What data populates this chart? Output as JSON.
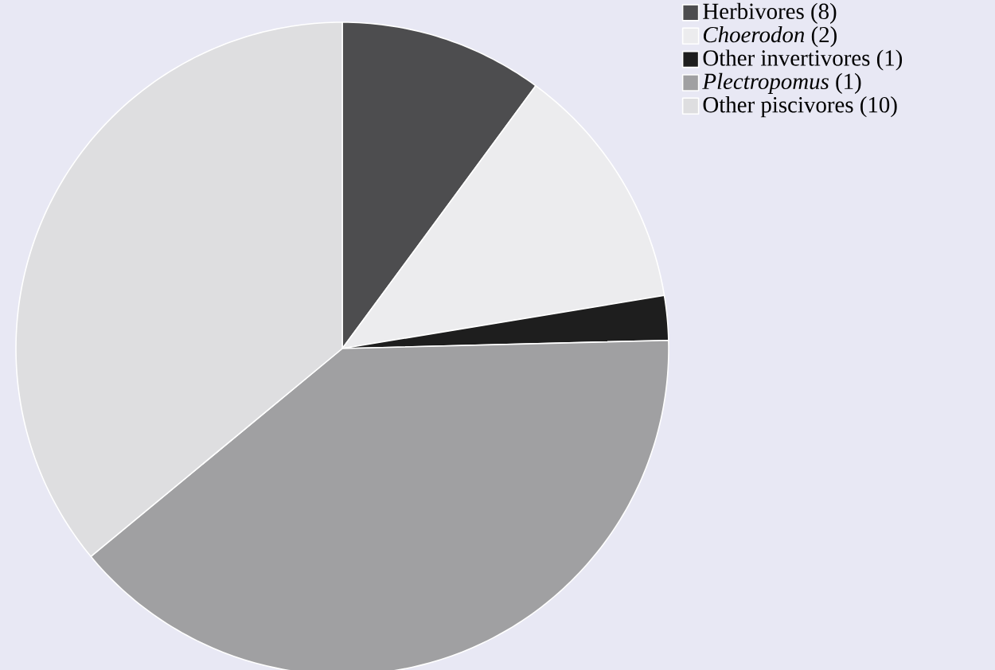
{
  "chart_data": {
    "type": "pie",
    "categories": [
      "Herbivores (8)",
      "*Choerodon* (2)",
      "Other invertivores (1)",
      "*Plectropomus* (1)",
      "Other piscivores (10)"
    ],
    "values": [
      10.1,
      12.3,
      2.2,
      39.4,
      36.0
    ],
    "colors": [
      "#4d4d4f",
      "#ececee",
      "#1e1e1e",
      "#a0a0a2",
      "#dedee0"
    ],
    "legend": "top right"
  }
}
